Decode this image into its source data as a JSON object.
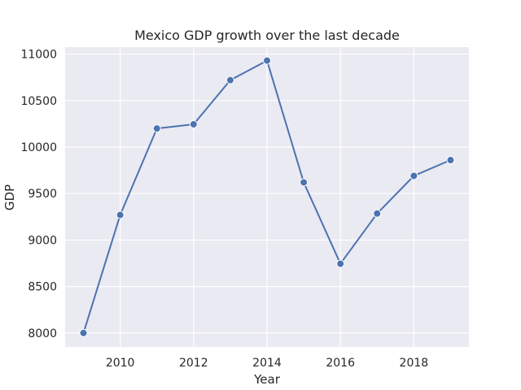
{
  "chart_data": {
    "type": "line",
    "title": "Mexico GDP growth over the last decade",
    "xlabel": "Year",
    "ylabel": "GDP",
    "x": [
      2009,
      2010,
      2011,
      2012,
      2013,
      2014,
      2015,
      2016,
      2017,
      2018,
      2019
    ],
    "series": [
      {
        "values": [
          8000,
          9270,
          10200,
          10245,
          10720,
          10930,
          9620,
          8745,
          9285,
          9690,
          9860
        ]
      }
    ],
    "xlim": [
      2008.5,
      2019.5
    ],
    "ylim": [
      7850,
      11075
    ],
    "xticks": [
      2010,
      2012,
      2014,
      2016,
      2018
    ],
    "xtick_labels": [
      "2010",
      "2012",
      "2014",
      "2016",
      "2018"
    ],
    "yticks": [
      8000,
      8500,
      9000,
      9500,
      10000,
      10500,
      11000
    ],
    "ytick_labels": [
      "8000",
      "8500",
      "9000",
      "9500",
      "10000",
      "10500",
      "11000"
    ],
    "grid": true,
    "legend": false,
    "colors": {
      "series": "#4c72b0",
      "plot_background": "#eaeaf2",
      "grid": "#ffffff",
      "text": "#262626"
    }
  }
}
